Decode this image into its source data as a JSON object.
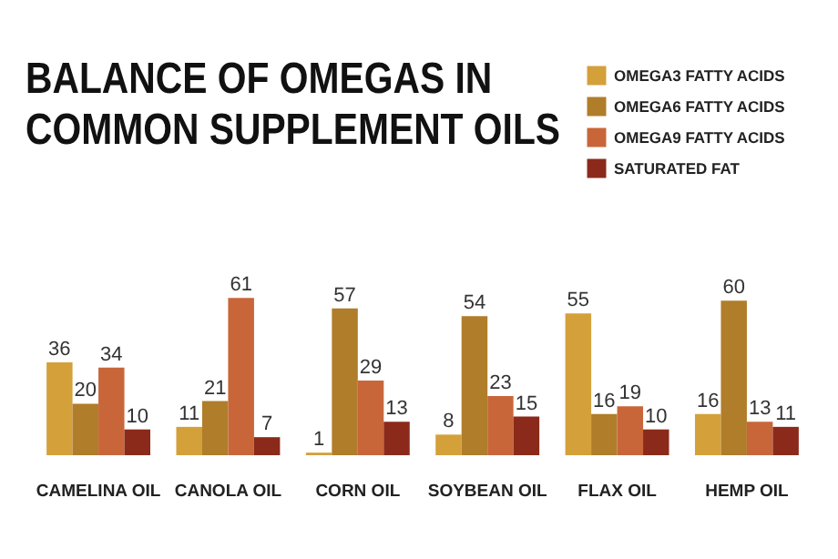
{
  "chart_data": {
    "type": "bar",
    "title": "BALANCE OF OMEGAS IN\nCOMMON SUPPLEMENT OILS",
    "categories": [
      "CAMELINA OIL",
      "CANOLA OIL",
      "CORN OIL",
      "SOYBEAN OIL",
      "FLAX OIL",
      "HEMP OIL"
    ],
    "series": [
      {
        "name": "OMEGA3 FATTY ACIDS",
        "color": "#d4a03a",
        "values": [
          36,
          11,
          1,
          8,
          55,
          16
        ]
      },
      {
        "name": "OMEGA6 FATTY ACIDS",
        "color": "#b07d2a",
        "values": [
          20,
          21,
          57,
          54,
          16,
          60
        ]
      },
      {
        "name": "OMEGA9 FATTY ACIDS",
        "color": "#c8663a",
        "values": [
          34,
          61,
          29,
          23,
          19,
          13
        ]
      },
      {
        "name": "SATURATED FAT",
        "color": "#8b2a1a",
        "values": [
          10,
          7,
          13,
          15,
          10,
          11
        ]
      }
    ],
    "data_labels": true,
    "legend": "top right",
    "grid": false
  }
}
